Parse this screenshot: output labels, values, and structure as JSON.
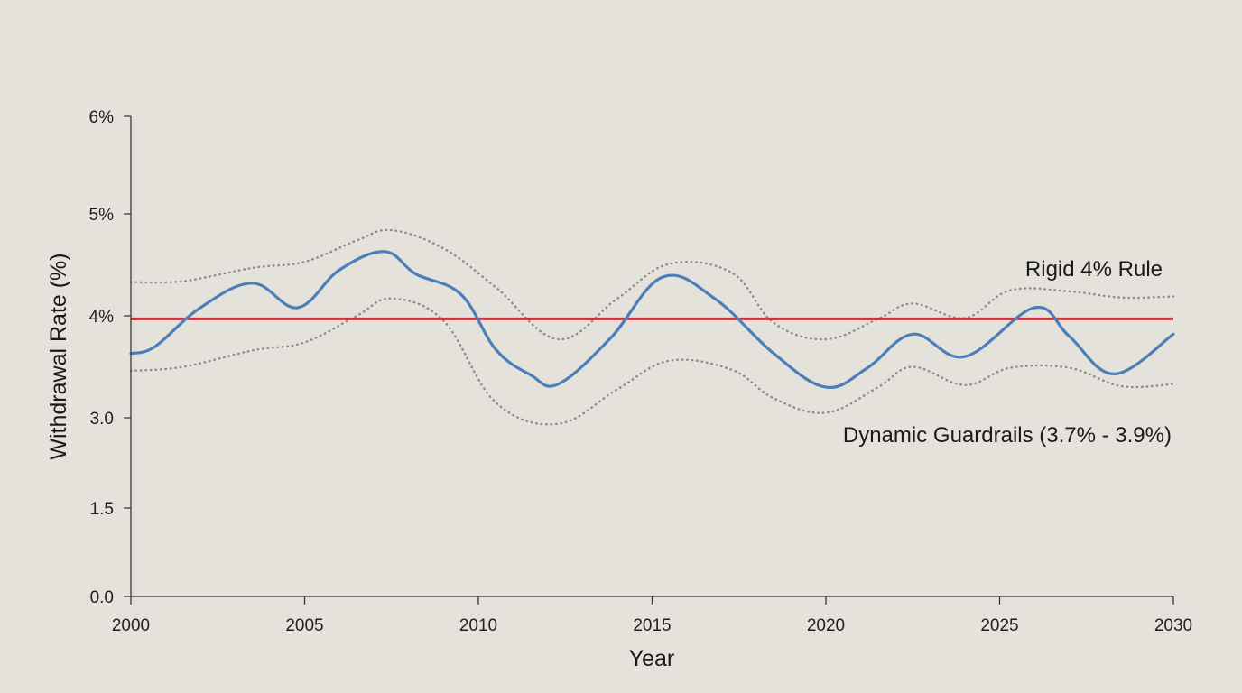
{
  "chart_data": {
    "type": "line",
    "xlabel": "Year",
    "ylabel": "Withdrawal Rate (%)",
    "xlim": [
      2000,
      2030
    ],
    "ylim": [
      0,
      6
    ],
    "grid": false,
    "x_ticks": [
      {
        "value": 2000,
        "label": "2000"
      },
      {
        "value": 2005,
        "label": "2005"
      },
      {
        "value": 2010,
        "label": "2010"
      },
      {
        "value": 2015,
        "label": "2015"
      },
      {
        "value": 2020,
        "label": "2020"
      },
      {
        "value": 2025,
        "label": "2025"
      },
      {
        "value": 2030,
        "label": "2030"
      }
    ],
    "y_ticks": [
      {
        "value": 0,
        "label": "0.0"
      },
      {
        "value": 1.5,
        "label": "1.5"
      },
      {
        "value": 3,
        "label": "3.0"
      },
      {
        "value": 4,
        "label": "4%"
      },
      {
        "value": 5,
        "label": "5%"
      },
      {
        "value": 6,
        "label": "6%"
      }
    ],
    "annotations": {
      "rigid": "Rigid 4% Rule",
      "guardrails": "Dynamic Guardrails (3.7% - 3.9%)"
    },
    "series": [
      {
        "key": "dynamic",
        "style": "solid",
        "color": "#4a7fb8",
        "x": [
          2000,
          2000.7,
          2002,
          2003.5,
          2004.8,
          2006,
          2007.3,
          2008.2,
          2009.5,
          2010.5,
          2011.5,
          2012.3,
          2013.8,
          2015.3,
          2016.8,
          2018.5,
          2020,
          2021.2,
          2022.5,
          2024,
          2026,
          2027,
          2028.3,
          2030
        ],
        "y": [
          3.63,
          3.7,
          4.08,
          4.32,
          4.08,
          4.45,
          4.63,
          4.41,
          4.21,
          3.67,
          3.42,
          3.33,
          3.78,
          4.38,
          4.17,
          3.63,
          3.3,
          3.49,
          3.82,
          3.6,
          4.08,
          3.8,
          3.43,
          3.82
        ]
      },
      {
        "key": "upper",
        "style": "dotted",
        "color": "#8a8a8a",
        "x": [
          2000,
          2001.5,
          2003.5,
          2005,
          2006.5,
          2007.5,
          2009,
          2010.5,
          2012.3,
          2014,
          2015.5,
          2017.3,
          2018.5,
          2020,
          2021.5,
          2022.5,
          2024,
          2025.3,
          2027,
          2028.5,
          2030
        ],
        "y": [
          4.33,
          4.34,
          4.47,
          4.53,
          4.74,
          4.84,
          4.66,
          4.28,
          3.77,
          4.17,
          4.51,
          4.42,
          3.93,
          3.77,
          3.97,
          4.12,
          3.98,
          4.25,
          4.24,
          4.18,
          4.19
        ]
      },
      {
        "key": "lower",
        "style": "dotted",
        "color": "#8a8a8a",
        "x": [
          2000,
          2001.5,
          2003.5,
          2005,
          2006.5,
          2007.5,
          2009,
          2010.5,
          2012.3,
          2014,
          2015.5,
          2017.3,
          2018.5,
          2020,
          2021.5,
          2022.5,
          2024,
          2025.3,
          2027,
          2028.5,
          2030
        ],
        "y": [
          3.46,
          3.5,
          3.66,
          3.74,
          4.0,
          4.17,
          3.95,
          3.15,
          2.9,
          3.28,
          3.56,
          3.47,
          3.19,
          3.05,
          3.3,
          3.5,
          3.32,
          3.49,
          3.49,
          3.31,
          3.33
        ]
      },
      {
        "key": "rigid",
        "style": "solid",
        "color": "#c8323a",
        "x": [
          2000,
          2030
        ],
        "y": [
          3.97,
          3.97
        ]
      }
    ]
  }
}
